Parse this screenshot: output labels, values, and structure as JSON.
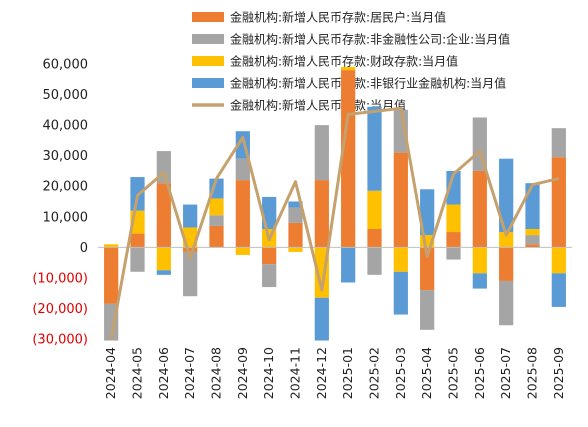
{
  "chart_data": {
    "type": "bar",
    "stacked": true,
    "categories": [
      "2024-04",
      "2024-05",
      "2024-06",
      "2024-07",
      "2024-08",
      "2024-09",
      "2024-10",
      "2024-11",
      "2024-12",
      "2025-01",
      "2025-02",
      "2025-03",
      "2025-04",
      "2025-05",
      "2025-06",
      "2025-07",
      "2025-08",
      "2025-09"
    ],
    "series": [
      {
        "name": "金融机构:新增人民币存款:居民户:当月值",
        "kind": "bar",
        "color": "#ED7D31",
        "values": [
          -18500,
          4500,
          21000,
          -1500,
          7000,
          22000,
          -5500,
          8000,
          22000,
          58000,
          6000,
          31000,
          -14000,
          5000,
          25000,
          -11000,
          1000,
          29500
        ]
      },
      {
        "name": "金融机构:新增人民币存款:非金融性公司:企业:当月值",
        "kind": "bar",
        "color": "#A5A5A5",
        "values": [
          -12000,
          -8000,
          10500,
          -14500,
          3500,
          7000,
          -7500,
          5000,
          18000,
          0,
          -9000,
          14000,
          -13000,
          -4000,
          17500,
          -14500,
          3000,
          9500
        ]
      },
      {
        "name": "金融机构:新增人民币存款:财政存款:当月值",
        "kind": "bar",
        "color": "#FFC000",
        "values": [
          1000,
          7500,
          -7500,
          6500,
          5500,
          -2500,
          6000,
          -1500,
          -16500,
          1000,
          12500,
          -8000,
          4000,
          9000,
          -8500,
          5000,
          2000,
          -8500
        ]
      },
      {
        "name": "金融机构:新增人民币存款:非银行业金融机构:当月值",
        "kind": "bar",
        "color": "#5B9BD5",
        "values": [
          0,
          11000,
          -1500,
          7500,
          6500,
          9000,
          10500,
          2000,
          -14000,
          -11500,
          27500,
          -14000,
          15000,
          11000,
          -5000,
          24000,
          15000,
          -11000
        ]
      },
      {
        "name": "金融机构:新增人民币存款:当月值",
        "kind": "line",
        "color": "#C5A16E",
        "values": [
          -30000,
          17000,
          24500,
          -3500,
          22500,
          36000,
          2500,
          21500,
          -14000,
          43500,
          44500,
          45500,
          -3000,
          24000,
          31500,
          4000,
          20500,
          22500
        ]
      }
    ],
    "y_ticks": [
      -30000,
      -20000,
      -10000,
      0,
      10000,
      20000,
      30000,
      40000,
      50000,
      60000
    ],
    "y_tick_labels": [
      "(30,000)",
      "(20,000)",
      "(10,000)",
      "0",
      "10,000",
      "20,000",
      "30,000",
      "40,000",
      "50,000",
      "60,000"
    ],
    "ylim": [
      -30000,
      60000
    ],
    "negative_tick_color": "#E00000",
    "legend_position": "top-right"
  }
}
